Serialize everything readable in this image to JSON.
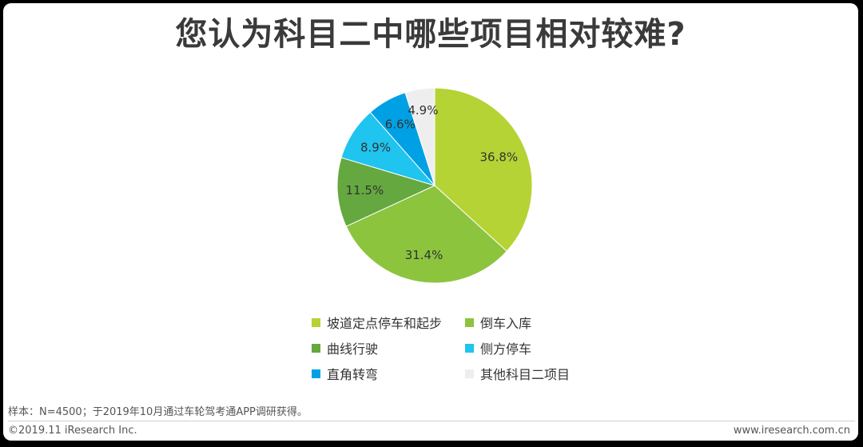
{
  "title": "您认为科目二中哪些项目相对较难?",
  "chart_data": {
    "type": "pie",
    "unit": "%",
    "categories": [
      "坡道定点停车和起步",
      "倒车入库",
      "曲线行驶",
      "侧方停车",
      "直角转弯",
      "其他科目二项目"
    ],
    "values": [
      36.8,
      31.4,
      11.5,
      8.9,
      6.6,
      4.9
    ],
    "labels": [
      "36.8%",
      "31.4%",
      "11.5%",
      "8.9%",
      "6.6%",
      "4.9%"
    ],
    "colors": [
      "#b5d334",
      "#8cc43e",
      "#64a83f",
      "#1fc4ef",
      "#00a1e4",
      "#eeeeee"
    ],
    "legend_position": "bottom"
  },
  "source_note": "样本：N=4500；于2019年10月通过车轮驾考通APP调研获得。",
  "footer": {
    "copyright": "©2019.11 iResearch Inc.",
    "website": "www.iresearch.com.cn"
  }
}
